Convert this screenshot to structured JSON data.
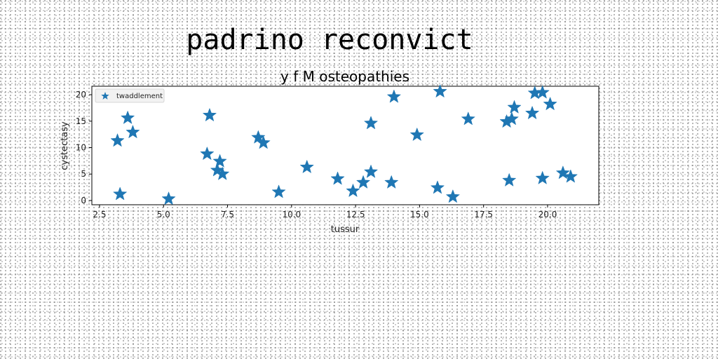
{
  "chart_data": {
    "type": "scatter",
    "suptitle": "padrino reconvict",
    "title": "y f M osteopathies",
    "xlabel": "tussur",
    "ylabel": "cystectasy",
    "xlim": [
      2.2,
      22.0
    ],
    "ylim": [
      -0.8,
      21.6
    ],
    "xticks": [
      2.5,
      5.0,
      7.5,
      10.0,
      12.5,
      15.0,
      17.5,
      20.0
    ],
    "xtick_labels": [
      "2.5",
      "5.0",
      "7.5",
      "10.0",
      "12.5",
      "15.0",
      "17.5",
      "20.0"
    ],
    "yticks": [
      0,
      5,
      10,
      15,
      20
    ],
    "ytick_labels": [
      "0",
      "5",
      "10",
      "15",
      "20"
    ],
    "grid": false,
    "legend_position": "top-left",
    "marker": "star",
    "color": "#1f77b4",
    "series": [
      {
        "name": "twaddlement",
        "points": [
          [
            3.2,
            11.3
          ],
          [
            3.3,
            1.2
          ],
          [
            3.6,
            15.6
          ],
          [
            3.8,
            12.9
          ],
          [
            5.2,
            0.3
          ],
          [
            6.7,
            8.8
          ],
          [
            6.8,
            16.1
          ],
          [
            7.1,
            5.7
          ],
          [
            7.2,
            7.4
          ],
          [
            7.3,
            5.0
          ],
          [
            8.7,
            11.9
          ],
          [
            8.9,
            10.9
          ],
          [
            9.5,
            1.6
          ],
          [
            10.6,
            6.3
          ],
          [
            11.8,
            4.1
          ],
          [
            12.4,
            1.8
          ],
          [
            12.8,
            3.4
          ],
          [
            13.1,
            5.4
          ],
          [
            13.1,
            14.6
          ],
          [
            13.9,
            3.4
          ],
          [
            14.0,
            19.6
          ],
          [
            14.9,
            12.4
          ],
          [
            15.7,
            2.4
          ],
          [
            15.8,
            20.6
          ],
          [
            16.3,
            0.7
          ],
          [
            16.9,
            15.4
          ],
          [
            18.4,
            14.9
          ],
          [
            18.5,
            3.8
          ],
          [
            18.6,
            15.4
          ],
          [
            18.7,
            17.6
          ],
          [
            19.4,
            16.5
          ],
          [
            19.5,
            20.3
          ],
          [
            19.8,
            20.4
          ],
          [
            19.8,
            4.2
          ],
          [
            20.1,
            18.2
          ],
          [
            20.6,
            5.2
          ],
          [
            20.9,
            4.5
          ]
        ]
      }
    ]
  }
}
